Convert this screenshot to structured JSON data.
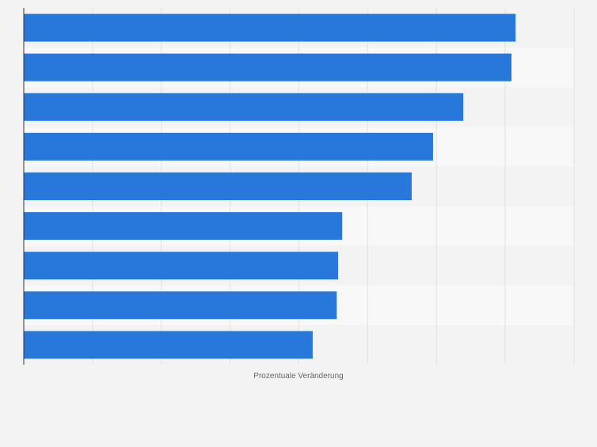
{
  "chart_data": {
    "type": "bar",
    "orientation": "horizontal",
    "title": "",
    "xlabel": "Prozentuale Veränderung",
    "ylabel": "",
    "categories": [
      "",
      "",
      "",
      "",
      "",
      "",
      "",
      "",
      ""
    ],
    "values": [
      71.5,
      70.9,
      63.9,
      59.5,
      56.4,
      46.3,
      45.7,
      45.5,
      42.0
    ],
    "xlim": [
      0,
      80
    ],
    "grid": true,
    "legend": "none",
    "colors": {
      "bar": "#2878dc",
      "band_dark": "#f3f3f3",
      "band_light": "#f8f8f8",
      "grid": "#e2e2e2",
      "axis": "#333333",
      "label": "#666666"
    }
  }
}
